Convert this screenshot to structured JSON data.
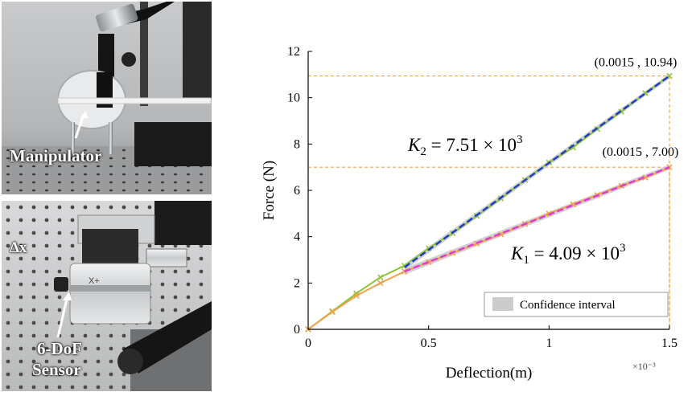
{
  "photos": {
    "top": {
      "label": "Manipulator"
    },
    "bottom": {
      "label_delta": "Δx",
      "label_sensor_line1": "6-DoF",
      "label_sensor_line2": "Sensor",
      "sensor_marking": "X+"
    }
  },
  "chart_data": {
    "type": "line",
    "xlabel": "Deflection(m)",
    "ylabel": "Force (N)",
    "x_exponent_label": "×10⁻³",
    "xlim": [
      0,
      1.5
    ],
    "ylim": [
      0,
      12
    ],
    "x_ticks": [
      0,
      0.5,
      1,
      1.5
    ],
    "x_tick_labels": [
      "0",
      "0.5",
      "1",
      "1.5"
    ],
    "y_ticks": [
      0,
      2,
      4,
      6,
      8,
      10,
      12
    ],
    "y_tick_labels": [
      "0",
      "2",
      "4",
      "6",
      "8",
      "10",
      "12"
    ],
    "series": [
      {
        "key": "k2_measured",
        "color": "#8fc43c",
        "marker": "x",
        "width": 2,
        "x": [
          0,
          0.1,
          0.2,
          0.3,
          0.4,
          0.5,
          0.6,
          0.7,
          0.8,
          0.9,
          1.0,
          1.1,
          1.2,
          1.3,
          1.4,
          1.5
        ],
        "y": [
          0,
          0.78,
          1.55,
          2.25,
          2.75,
          3.5,
          4.15,
          4.9,
          5.65,
          6.45,
          7.2,
          7.85,
          8.65,
          9.4,
          10.2,
          10.94
        ]
      },
      {
        "key": "k1_measured",
        "color": "#f0a24a",
        "marker": "x",
        "width": 2,
        "x": [
          0,
          0.1,
          0.2,
          0.3,
          0.4,
          0.5,
          0.6,
          0.7,
          0.8,
          0.9,
          1.0,
          1.1,
          1.2,
          1.3,
          1.4,
          1.5
        ],
        "y": [
          0,
          0.75,
          1.45,
          2.0,
          2.5,
          2.9,
          3.3,
          3.7,
          4.1,
          4.55,
          5.0,
          5.4,
          5.8,
          6.2,
          6.55,
          7.0
        ]
      },
      {
        "key": "k2_fit",
        "color": "#1f3fbf",
        "dash": "8,4",
        "width": 2.5,
        "x": [
          0.4,
          1.5
        ],
        "y": [
          2.68,
          10.94
        ]
      },
      {
        "key": "k1_fit",
        "color": "#e03ad0",
        "dash": "8,4",
        "width": 2.5,
        "x": [
          0.4,
          1.5
        ],
        "y": [
          2.5,
          7.0
        ]
      }
    ],
    "confidence_band_color": "#cccccc",
    "reference_lines": [
      {
        "x": 1.5,
        "y": 10.94,
        "color": "#f0a24a"
      },
      {
        "x": 1.5,
        "y": 7.0,
        "color": "#f0a24a"
      }
    ],
    "annotations": [
      {
        "key": "point_k2",
        "text": "(0.0015 , 10.94)"
      },
      {
        "key": "point_k1",
        "text": "(0.0015 , 7.00)"
      },
      {
        "key": "eq_k2",
        "var": "K",
        "sub": "2",
        "rest": " = 7.51 × 10",
        "exp": "3"
      },
      {
        "key": "eq_k1",
        "var": "K",
        "sub": "1",
        "rest": " = 4.09 × 10",
        "exp": "3"
      }
    ],
    "legend": {
      "position": "bottom-right",
      "entries": [
        "Confidence interval"
      ]
    }
  }
}
